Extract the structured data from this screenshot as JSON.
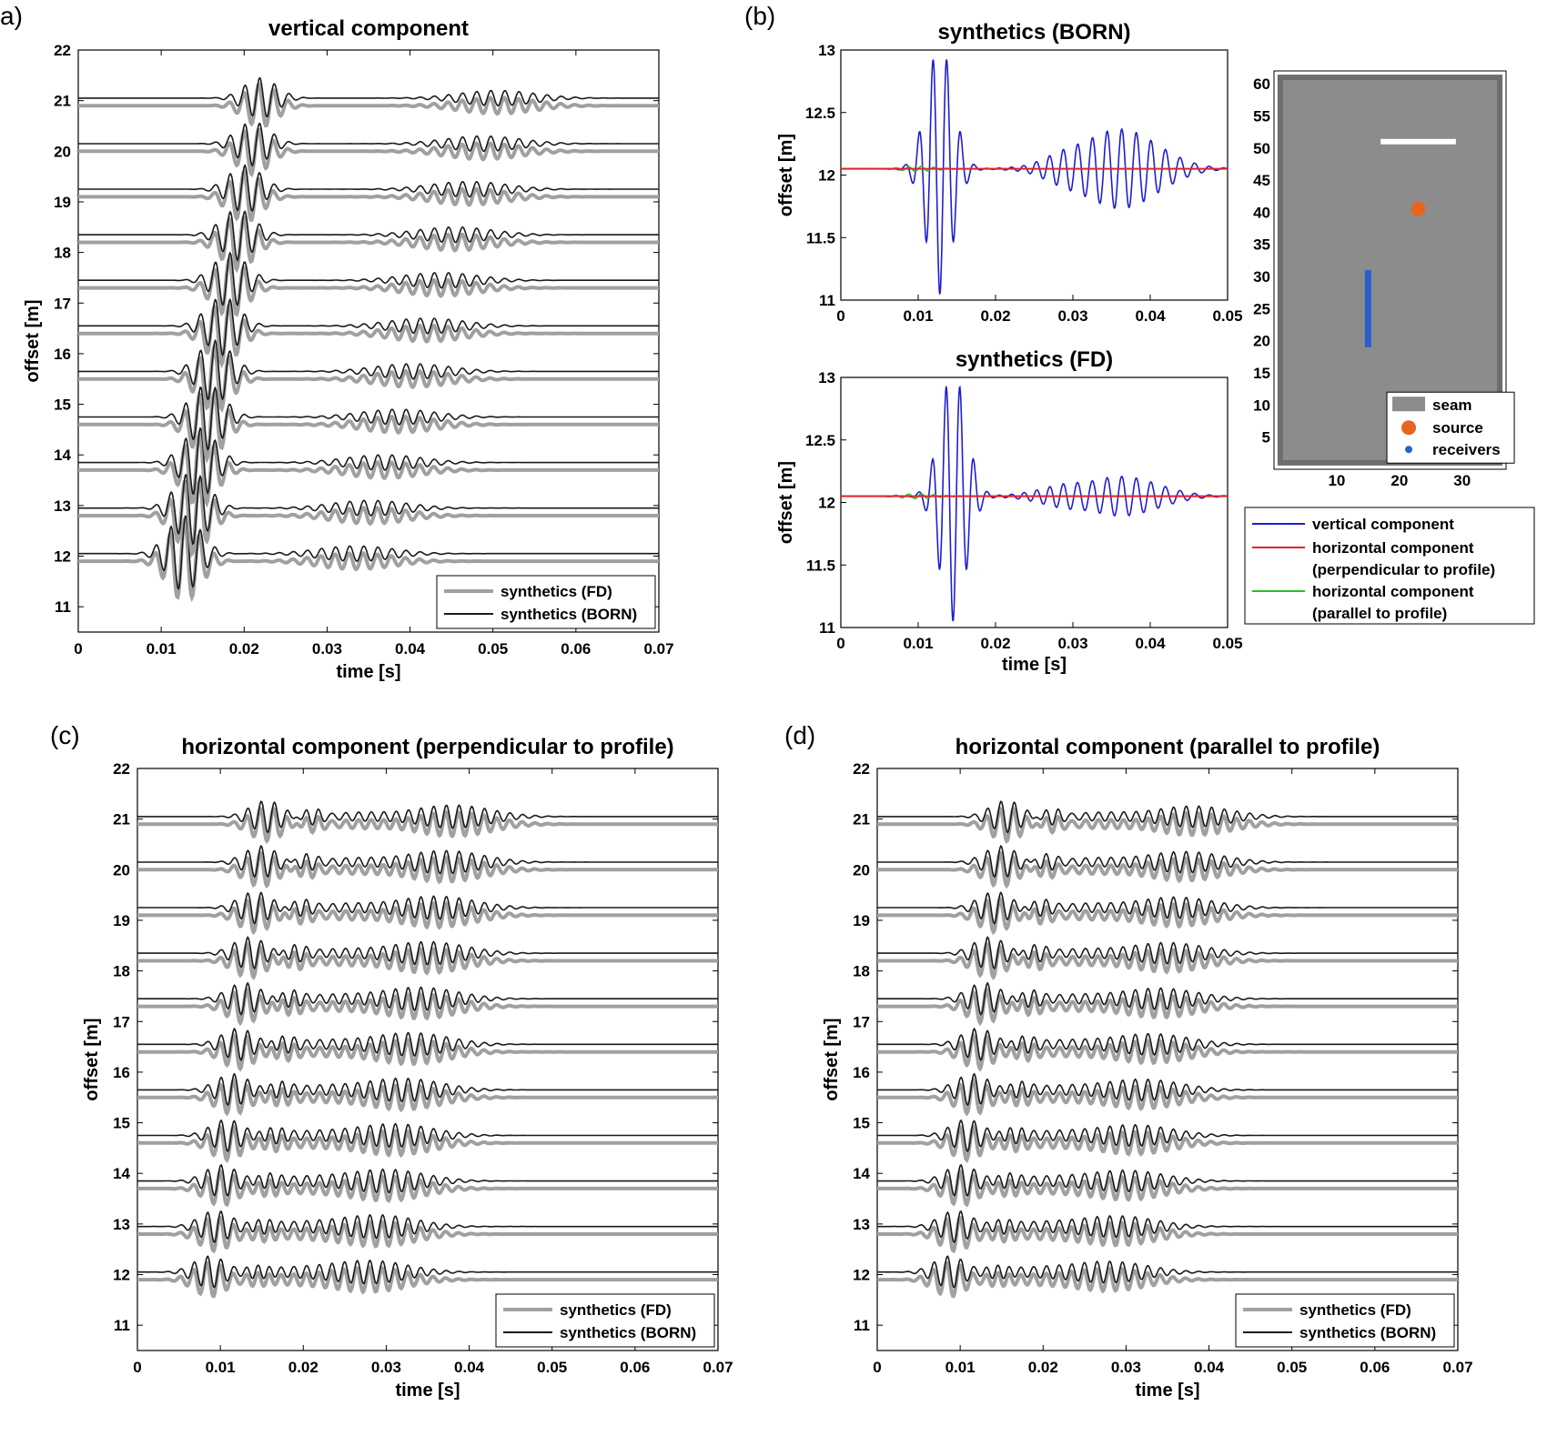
{
  "figure": {
    "panel_a_label": "a)",
    "panel_b_label": "(b)",
    "panel_c_label": "(c)",
    "panel_d_label": "(d)"
  },
  "chart_data": [
    {
      "id": "a",
      "type": "line",
      "title": "vertical component",
      "xlabel": "time [s]",
      "ylabel": "offset [m]",
      "xlim": [
        0,
        0.07
      ],
      "ylim": [
        10.5,
        22
      ],
      "xticks": [
        "0",
        "0.01",
        "0.02",
        "0.03",
        "0.04",
        "0.05",
        "0.06",
        "0.07"
      ],
      "yticks": [
        "11",
        "12",
        "13",
        "14",
        "15",
        "16",
        "17",
        "18",
        "19",
        "20",
        "21",
        "22"
      ],
      "offsets": [
        12,
        12.9,
        13.8,
        14.7,
        15.6,
        16.5,
        17.4,
        18.3,
        19.2,
        20.1,
        21
      ],
      "series": [
        {
          "name": "synthetics (FD)",
          "color": "#a0a0a0"
        },
        {
          "name": "synthetics (BORN)",
          "color": "#1a1a1a"
        }
      ],
      "legend": "bottom-right"
    },
    {
      "id": "b_born",
      "type": "line",
      "title": "synthetics (BORN)",
      "xlabel": "",
      "ylabel": "offset [m]",
      "xlim": [
        0,
        0.05
      ],
      "ylim": [
        11,
        13
      ],
      "xticks": [
        "0",
        "0.01",
        "0.02",
        "0.03",
        "0.04",
        "0.05"
      ],
      "yticks": [
        "11",
        "11.5",
        "12",
        "12.5",
        "13"
      ],
      "offset": 12.05
    },
    {
      "id": "b_fd",
      "type": "line",
      "title": "synthetics (FD)",
      "xlabel": "time [s]",
      "ylabel": "offset [m]",
      "xlim": [
        0,
        0.05
      ],
      "ylim": [
        11,
        13
      ],
      "xticks": [
        "0",
        "0.01",
        "0.02",
        "0.03",
        "0.04",
        "0.05"
      ],
      "yticks": [
        "11",
        "11.5",
        "12",
        "12.5",
        "13"
      ],
      "offset": 12.05,
      "series": [
        {
          "name": "vertical component",
          "color": "#1f1fd0"
        },
        {
          "name": "horizontal component",
          "name2": "(perpendicular to profile)",
          "color": "#e8202a"
        },
        {
          "name": "horizontal component",
          "name2": "(parallel to profile)",
          "color": "#22c022"
        }
      ],
      "legend": "below-right"
    },
    {
      "id": "b_map",
      "type": "scatter",
      "xticks": [
        "10",
        "20",
        "30"
      ],
      "yticks": [
        "5",
        "10",
        "15",
        "20",
        "25",
        "30",
        "35",
        "40",
        "45",
        "50",
        "55",
        "60"
      ],
      "xlim": [
        0,
        37
      ],
      "ylim": [
        0,
        62
      ],
      "seam": {
        "x": [
          1,
          36
        ],
        "y": [
          1,
          61
        ]
      },
      "source": {
        "x": 23,
        "y": 40.5
      },
      "receivers": {
        "x": 15,
        "y": [
          19,
          31
        ]
      },
      "white_bar": {
        "x": [
          17,
          29
        ],
        "y": 51
      },
      "legend_items": [
        "seam",
        "source",
        "receivers"
      ],
      "colors": {
        "seam": "#8c8c8c",
        "source": "#e8641e",
        "receivers": "#2a5fc8"
      }
    },
    {
      "id": "c",
      "type": "line",
      "title": "horizontal component (perpendicular to profile)",
      "xlabel": "time [s]",
      "ylabel": "offset [m]",
      "xlim": [
        0,
        0.07
      ],
      "ylim": [
        10.5,
        22
      ],
      "xticks": [
        "0",
        "0.01",
        "0.02",
        "0.03",
        "0.04",
        "0.05",
        "0.06",
        "0.07"
      ],
      "yticks": [
        "11",
        "12",
        "13",
        "14",
        "15",
        "16",
        "17",
        "18",
        "19",
        "20",
        "21",
        "22"
      ],
      "offsets": [
        12,
        12.9,
        13.8,
        14.7,
        15.6,
        16.5,
        17.4,
        18.3,
        19.2,
        20.1,
        21
      ],
      "series": [
        {
          "name": "synthetics (FD)",
          "color": "#a0a0a0"
        },
        {
          "name": "synthetics (BORN)",
          "color": "#1a1a1a"
        }
      ],
      "legend": "bottom-right"
    },
    {
      "id": "d",
      "type": "line",
      "title": "horizontal component (parallel to profile)",
      "xlabel": "time [s]",
      "ylabel": "offset [m]",
      "xlim": [
        0,
        0.07
      ],
      "ylim": [
        10.5,
        22
      ],
      "xticks": [
        "0",
        "0.01",
        "0.02",
        "0.03",
        "0.04",
        "0.05",
        "0.06",
        "0.07"
      ],
      "yticks": [
        "11",
        "12",
        "13",
        "14",
        "15",
        "16",
        "17",
        "18",
        "19",
        "20",
        "21",
        "22"
      ],
      "offsets": [
        12,
        12.9,
        13.8,
        14.7,
        15.6,
        16.5,
        17.4,
        18.3,
        19.2,
        20.1,
        21
      ],
      "series": [
        {
          "name": "synthetics (FD)",
          "color": "#a0a0a0"
        },
        {
          "name": "synthetics (BORN)",
          "color": "#1a1a1a"
        }
      ],
      "legend": "bottom-right"
    }
  ]
}
